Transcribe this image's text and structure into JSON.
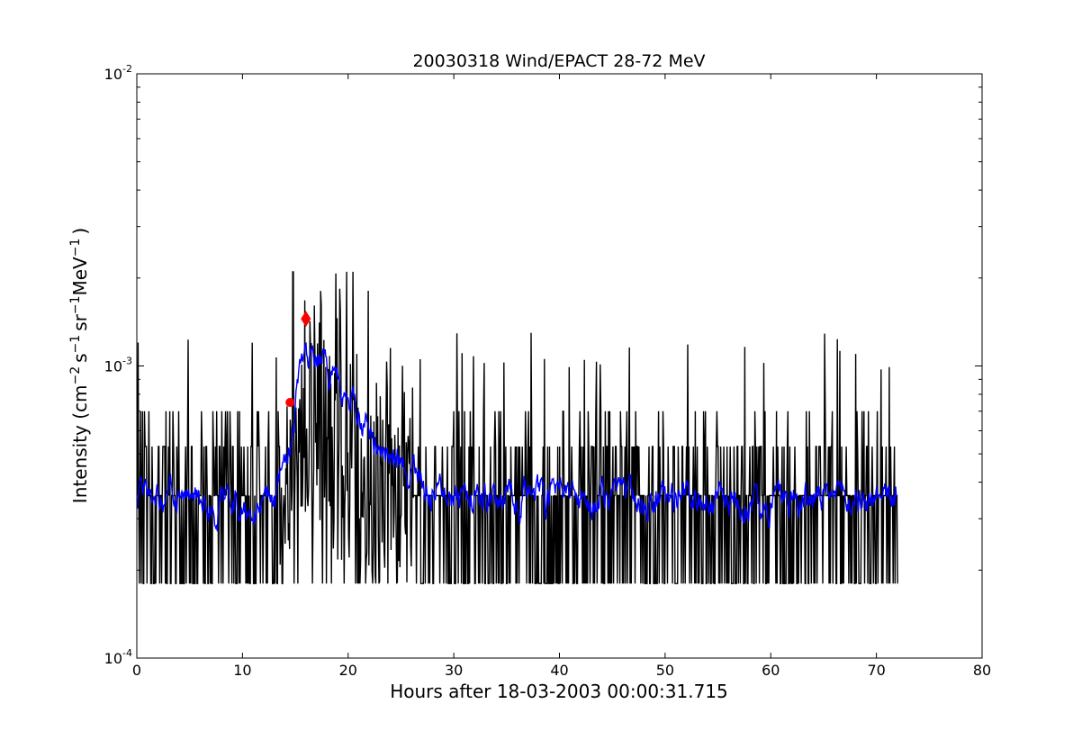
{
  "chart_data": {
    "type": "line",
    "title": "20030318 Wind/EPACT 28-72 MeV",
    "xlabel": "Hours after 18-03-2003 00:00:31.715",
    "ylabel": {
      "prefix": "Intensity (cm",
      "cm_exp": "−2",
      "s": "s",
      "s_exp": "−1",
      "sr": "sr",
      "sr_exp": "−1",
      "mev": "MeV",
      "mev_exp": "−1",
      "suffix": ")"
    },
    "xlim": [
      0,
      80
    ],
    "ylim": [
      0.0001,
      0.01
    ],
    "yscale": "log",
    "x_ticks": [
      "0",
      "10",
      "20",
      "30",
      "40",
      "50",
      "60",
      "70",
      "80"
    ],
    "y_ticks": [
      {
        "base": "10",
        "exp": "-4",
        "value": 0.0001
      },
      {
        "base": "10",
        "exp": "-3",
        "value": 0.001
      },
      {
        "base": "10",
        "exp": "-2",
        "value": 0.01
      }
    ],
    "grid": false,
    "series": [
      {
        "role": "raw",
        "color": "#000000",
        "x_range": [
          0,
          72
        ],
        "baseline_level": 0.00018,
        "typical_levels": [
          0.00018,
          0.00036,
          0.00053,
          0.0007
        ]
      },
      {
        "role": "smoothed",
        "color": "#0000ff",
        "x_range": [
          0,
          72
        ],
        "typical_level": 0.00033
      }
    ],
    "event_envelope": [
      [
        0,
        0.00035
      ],
      [
        13,
        0.00033
      ],
      [
        14.5,
        0.0006
      ],
      [
        15.5,
        0.0011
      ],
      [
        17.5,
        0.0011
      ],
      [
        19.5,
        0.0008
      ],
      [
        22,
        0.00055
      ],
      [
        25,
        0.00045
      ],
      [
        28,
        0.00035
      ],
      [
        72,
        0.00034
      ]
    ],
    "markers": [
      {
        "shape": "circle",
        "color": "#ff0000",
        "x": 14.5,
        "y": 0.00075
      },
      {
        "shape": "diamond",
        "color": "#ff0000",
        "x": 16.0,
        "y": 0.00145
      }
    ]
  }
}
